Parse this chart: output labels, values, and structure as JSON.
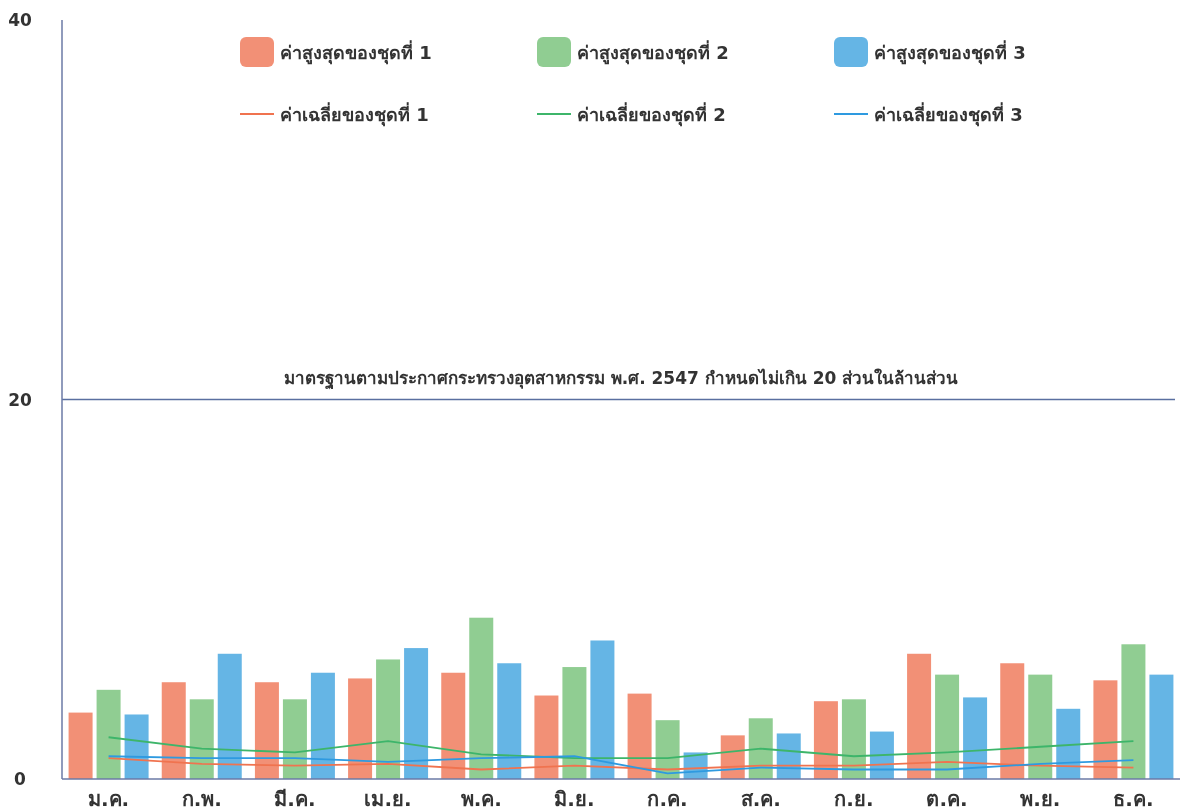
{
  "chart_data": {
    "type": "bar",
    "categories": [
      "ม.ค.",
      "ก.พ.",
      "มี.ค.",
      "เม.ย.",
      "พ.ค.",
      "มิ.ย.",
      "ก.ค.",
      "ส.ค.",
      "ก.ย.",
      "ต.ค.",
      "พ.ย.",
      "ธ.ค."
    ],
    "series": [
      {
        "name": "ค่าสูงสุดของชุดที่ 1",
        "color": "#f07c5e",
        "values": [
          3.5,
          5.1,
          5.1,
          5.3,
          5.6,
          4.4,
          4.5,
          2.3,
          4.1,
          6.6,
          6.1,
          5.2
        ]
      },
      {
        "name": "ค่าสูงสุดของชุดที่ 2",
        "color": "#7dc47f",
        "values": [
          4.7,
          4.2,
          4.2,
          6.3,
          8.5,
          5.9,
          3.1,
          3.2,
          4.2,
          5.5,
          5.5,
          7.1
        ]
      },
      {
        "name": "ค่าสูงสุดของชุดที่ 3",
        "color": "#4aa8e0",
        "values": [
          3.4,
          6.6,
          5.6,
          6.9,
          6.1,
          7.3,
          1.4,
          2.4,
          2.5,
          4.3,
          3.7,
          5.5
        ]
      },
      {
        "name": "ค่าเฉลี่ยของชุดที่ 1",
        "type": "line",
        "color": "#f0734f",
        "values": [
          1.1,
          0.8,
          0.7,
          0.8,
          0.5,
          0.7,
          0.5,
          0.7,
          0.7,
          0.9,
          0.7,
          0.6
        ]
      },
      {
        "name": "ค่าเฉลี่ยของชุดที่ 2",
        "type": "line",
        "color": "#3db56a",
        "values": [
          2.2,
          1.6,
          1.4,
          2.0,
          1.3,
          1.1,
          1.1,
          1.6,
          1.2,
          1.4,
          1.7,
          2.0
        ]
      },
      {
        "name": "ค่าเฉลี่ยของชุดที่ 3",
        "type": "line",
        "color": "#2e9ae0",
        "values": [
          1.2,
          1.1,
          1.1,
          0.9,
          1.1,
          1.2,
          0.3,
          0.6,
          0.5,
          0.5,
          0.8,
          1.0
        ]
      }
    ],
    "ylim": [
      0,
      40
    ],
    "yticks": [
      0,
      20,
      40
    ],
    "ref_lines": [
      {
        "axis": "y",
        "value": 20,
        "label": "มาตรฐานตามประกาศกระทรวงอุตสาหกรรม พ.ศ. 2547 กำหนดไม่เกิน 20 ส่วนในล้านส่วน",
        "color": "#5a6fa0"
      }
    ],
    "legend": "top"
  }
}
